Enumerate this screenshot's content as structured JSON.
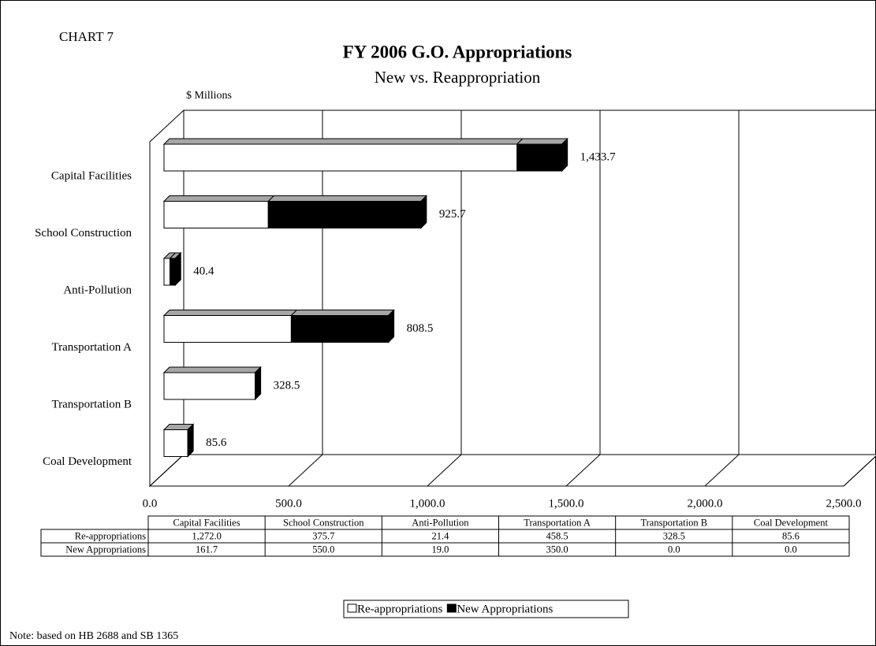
{
  "chart_data": {
    "type": "stacked_bar_3d",
    "label": "CHART 7",
    "title": "FY 2006 G.O. Appropriations",
    "subtitle": "New vs. Reappropriation",
    "unit_label": "$ Millions",
    "note": "Note:  based on HB 2688 and SB 1365",
    "categories": [
      "Capital Facilities",
      "School Construction",
      "Anti-Pollution",
      "Transportation A",
      "Transportation B",
      "Coal Development"
    ],
    "series": [
      {
        "name": "Re-appropriations",
        "color": "#ffffff",
        "values": [
          1272.0,
          375.7,
          21.4,
          458.5,
          328.5,
          85.6
        ],
        "value_labels": [
          "1,272.0",
          "375.7",
          "21.4",
          "458.5",
          "328.5",
          "85.6"
        ]
      },
      {
        "name": "New Appropriations",
        "color": "#000000",
        "values": [
          161.7,
          550.0,
          19.0,
          350.0,
          0.0,
          0.0
        ],
        "value_labels": [
          "161.7",
          "550.0",
          "19.0",
          "350.0",
          "0.0",
          "0.0"
        ]
      }
    ],
    "totals": {
      "values": [
        1433.7,
        925.7,
        40.4,
        808.5,
        328.5,
        85.6
      ],
      "value_labels": [
        "1,433.7",
        "925.7",
        "40.4",
        "808.5",
        "328.5",
        "85.6"
      ]
    },
    "xlim": [
      0,
      2500
    ],
    "xticks": [
      {
        "value": 0,
        "label": "0.0"
      },
      {
        "value": 500,
        "label": "500.0"
      },
      {
        "value": 1000,
        "label": "1,000.0"
      },
      {
        "value": 1500,
        "label": "1,500.0"
      },
      {
        "value": 2000,
        "label": "2,000.0"
      },
      {
        "value": 2500,
        "label": "2,500.0"
      }
    ],
    "grid": true
  }
}
